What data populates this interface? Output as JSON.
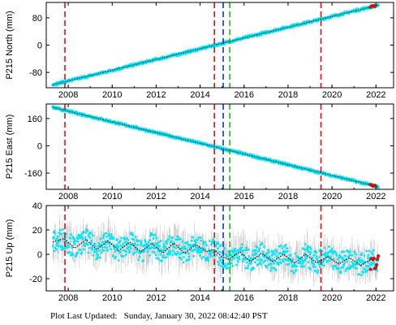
{
  "footer": {
    "label": "Plot Last Updated:",
    "timestamp": "Sunday, January 30, 2022 08:42:40 PST"
  },
  "colors": {
    "data_cloud": "#00e8f8",
    "error_bars": "#b4b4b4",
    "trend_line": "#000000",
    "recent_points": "#d01010",
    "line_red": "#dd1111",
    "line_blue": "#1133dd",
    "line_green": "#22bb22"
  },
  "chart_data": [
    {
      "type": "scatter",
      "ylabel": "P215 North (mm)",
      "xlim": [
        2007.0,
        2022.8
      ],
      "ylim": [
        -125,
        125
      ],
      "xticks": [
        "2008",
        "2010",
        "2012",
        "2014",
        "2016",
        "2018",
        "2020",
        "2022"
      ],
      "yticks": [
        "80",
        "0",
        "-80"
      ],
      "trend": {
        "x": [
          2007.3,
          2022.1
        ],
        "y": [
          -116,
          117
        ]
      },
      "series": [
        {
          "x": [
            2007.3,
            2008,
            2009,
            2010,
            2011,
            2012,
            2013,
            2014,
            2015,
            2016,
            2017,
            2018,
            2019,
            2020,
            2021,
            2022.1
          ],
          "y": [
            -116,
            -105,
            -90,
            -74,
            -58,
            -42,
            -27,
            -11,
            5,
            21,
            37,
            53,
            68,
            84,
            100,
            117
          ]
        }
      ],
      "vlines": [
        {
          "x": 2007.85,
          "style": "red"
        },
        {
          "x": 2014.65,
          "style": "red"
        },
        {
          "x": 2015.05,
          "style": "blue"
        },
        {
          "x": 2015.35,
          "style": "green"
        },
        {
          "x": 2019.5,
          "style": "red"
        }
      ]
    },
    {
      "type": "scatter",
      "ylabel": "P215 East (mm)",
      "xlim": [
        2007.0,
        2022.8
      ],
      "ylim": [
        -255,
        245
      ],
      "xticks": [
        "2008",
        "2010",
        "2012",
        "2014",
        "2016",
        "2018",
        "2020",
        "2022"
      ],
      "yticks": [
        "160",
        "0",
        "-160"
      ],
      "trend": {
        "x": [
          2007.3,
          2022.1
        ],
        "y": [
          225,
          -240
        ]
      },
      "series": [
        {
          "x": [
            2007.3,
            2008,
            2009,
            2010,
            2011,
            2012,
            2013,
            2014,
            2015,
            2016,
            2017,
            2018,
            2019,
            2020,
            2021,
            2022.1
          ],
          "y": [
            225,
            203,
            172,
            140,
            109,
            77,
            46,
            15,
            -17,
            -48,
            -80,
            -111,
            -143,
            -174,
            -206,
            -240
          ]
        }
      ],
      "vlines": [
        {
          "x": 2007.85,
          "style": "red"
        },
        {
          "x": 2014.65,
          "style": "red"
        },
        {
          "x": 2015.05,
          "style": "blue"
        },
        {
          "x": 2015.35,
          "style": "green"
        },
        {
          "x": 2019.5,
          "style": "red"
        }
      ]
    },
    {
      "type": "scatter",
      "ylabel": "P215 Up (mm)",
      "xlim": [
        2007.0,
        2022.8
      ],
      "ylim": [
        -30,
        40
      ],
      "xticks": [
        "2008",
        "2010",
        "2012",
        "2014",
        "2016",
        "2018",
        "2020",
        "2022"
      ],
      "yticks": [
        "40",
        "20",
        "0",
        "-20"
      ],
      "trend": {
        "x": [
          2007.3,
          2007.8,
          2008.3,
          2008.8,
          2009.3,
          2009.8,
          2010.3,
          2010.8,
          2011.3,
          2011.8,
          2012.3,
          2012.8,
          2013.3,
          2013.8,
          2014.3,
          2014.6,
          2015.0,
          2015.3,
          2015.8,
          2016.3,
          2016.8,
          2017.3,
          2017.8,
          2018.3,
          2018.8,
          2019.3,
          2019.8,
          2020.3,
          2020.8,
          2021.3,
          2021.8,
          2022.1
        ],
        "y": [
          10,
          13,
          5,
          12,
          4,
          11,
          3,
          10,
          2,
          9,
          1,
          9,
          1,
          8,
          2,
          4,
          -2,
          -4,
          2,
          -6,
          1,
          -6,
          0,
          -7,
          0,
          -7,
          -2,
          -8,
          -3,
          -9,
          -4,
          -5
        ]
      },
      "series": [
        {
          "x": [
            2007.3,
            2007.8,
            2008.3,
            2008.8,
            2009.3,
            2009.8,
            2010.3,
            2010.8,
            2011.3,
            2011.8,
            2012.3,
            2012.8,
            2013.3,
            2013.8,
            2014.3,
            2014.6,
            2015.0,
            2015.3,
            2015.8,
            2016.3,
            2016.8,
            2017.3,
            2017.8,
            2018.3,
            2018.8,
            2019.3,
            2019.8,
            2020.3,
            2020.8,
            2021.3,
            2021.8,
            2022.1
          ],
          "y": [
            10,
            13,
            5,
            12,
            4,
            11,
            3,
            10,
            2,
            9,
            1,
            9,
            1,
            8,
            2,
            4,
            -2,
            -4,
            2,
            -6,
            1,
            -6,
            0,
            -7,
            0,
            -7,
            -2,
            -8,
            -3,
            -9,
            -4,
            -5
          ]
        }
      ],
      "vlines": [
        {
          "x": 2007.85,
          "style": "red"
        },
        {
          "x": 2014.65,
          "style": "red"
        },
        {
          "x": 2015.05,
          "style": "blue"
        },
        {
          "x": 2015.35,
          "style": "green"
        },
        {
          "x": 2019.5,
          "style": "red"
        }
      ]
    }
  ]
}
